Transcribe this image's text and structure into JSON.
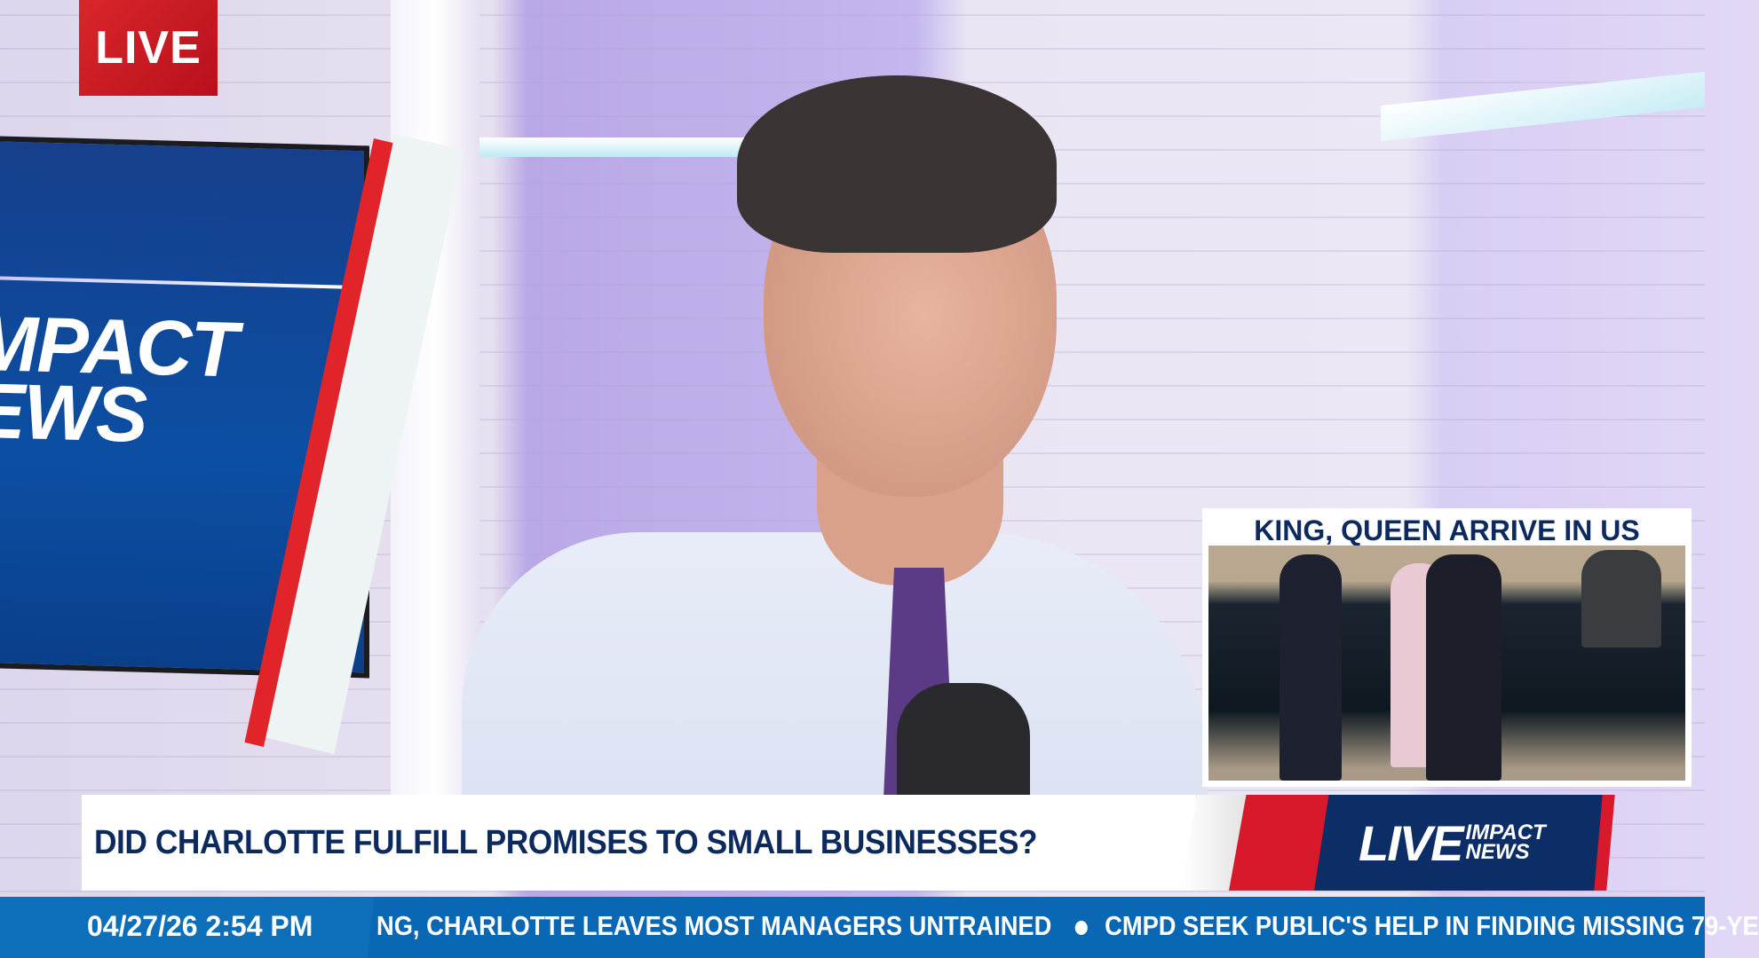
{
  "live_badge": "LIVE",
  "studio_monitor": {
    "logo_line1": "MPACT",
    "logo_line2": "EWS"
  },
  "inset": {
    "title": "KING, QUEEN ARRIVE IN US"
  },
  "lower_third": {
    "headline": "DID CHARLOTTE FULFILL PROMISES TO SMALL BUSINESSES?"
  },
  "brand": {
    "live": "LIVE",
    "impact": "IMPACT",
    "news": "NEWS"
  },
  "ticker": {
    "datetime": "04/27/26 2:54 PM",
    "items": [
      "NG, CHARLOTTE LEAVES MOST MANAGERS UNTRAINED",
      "CMPD SEEK PUBLIC'S HELP IN FINDING MISSING 79-YE"
    ]
  },
  "colors": {
    "brand_navy": "#0c2a5e",
    "brand_red": "#d7192b",
    "ticker_blue": "#0a67b3"
  }
}
